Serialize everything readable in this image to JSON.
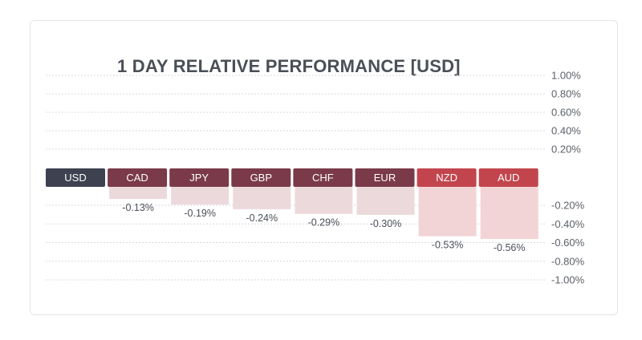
{
  "chart_data": {
    "type": "bar",
    "title": "1 DAY RELATIVE PERFORMANCE  [USD]",
    "base_currency": "USD",
    "categories": [
      "CAD",
      "JPY",
      "GBP",
      "CHF",
      "EUR",
      "NZD",
      "AUD"
    ],
    "values": [
      -0.13,
      -0.19,
      -0.24,
      -0.29,
      -0.3,
      -0.53,
      -0.56
    ],
    "value_labels": [
      "-0.13%",
      "-0.19%",
      "-0.24%",
      "-0.29%",
      "-0.30%",
      "-0.53%",
      "-0.56%"
    ],
    "ylim": [
      -1.0,
      1.0
    ],
    "yticks": [
      1.0,
      0.8,
      0.6,
      0.4,
      0.2,
      -0.2,
      -0.4,
      -0.6,
      -0.8,
      -1.0
    ],
    "ytick_labels": [
      "1.00%",
      "0.80%",
      "0.60%",
      "0.40%",
      "0.20%",
      "-0.20%",
      "-0.40%",
      "-0.60%",
      "-0.80%",
      "-1.00%"
    ],
    "grid": true,
    "colors": {
      "base": "#3d4150",
      "negative_strong": "#c2454d",
      "negative_mild": "#7a3a4a",
      "bar_fill": "#ecd9dc",
      "bar_fill_strong": "#f3d4d6",
      "grid": "#d8dade"
    },
    "strong_categories": [
      "NZD",
      "AUD"
    ]
  }
}
